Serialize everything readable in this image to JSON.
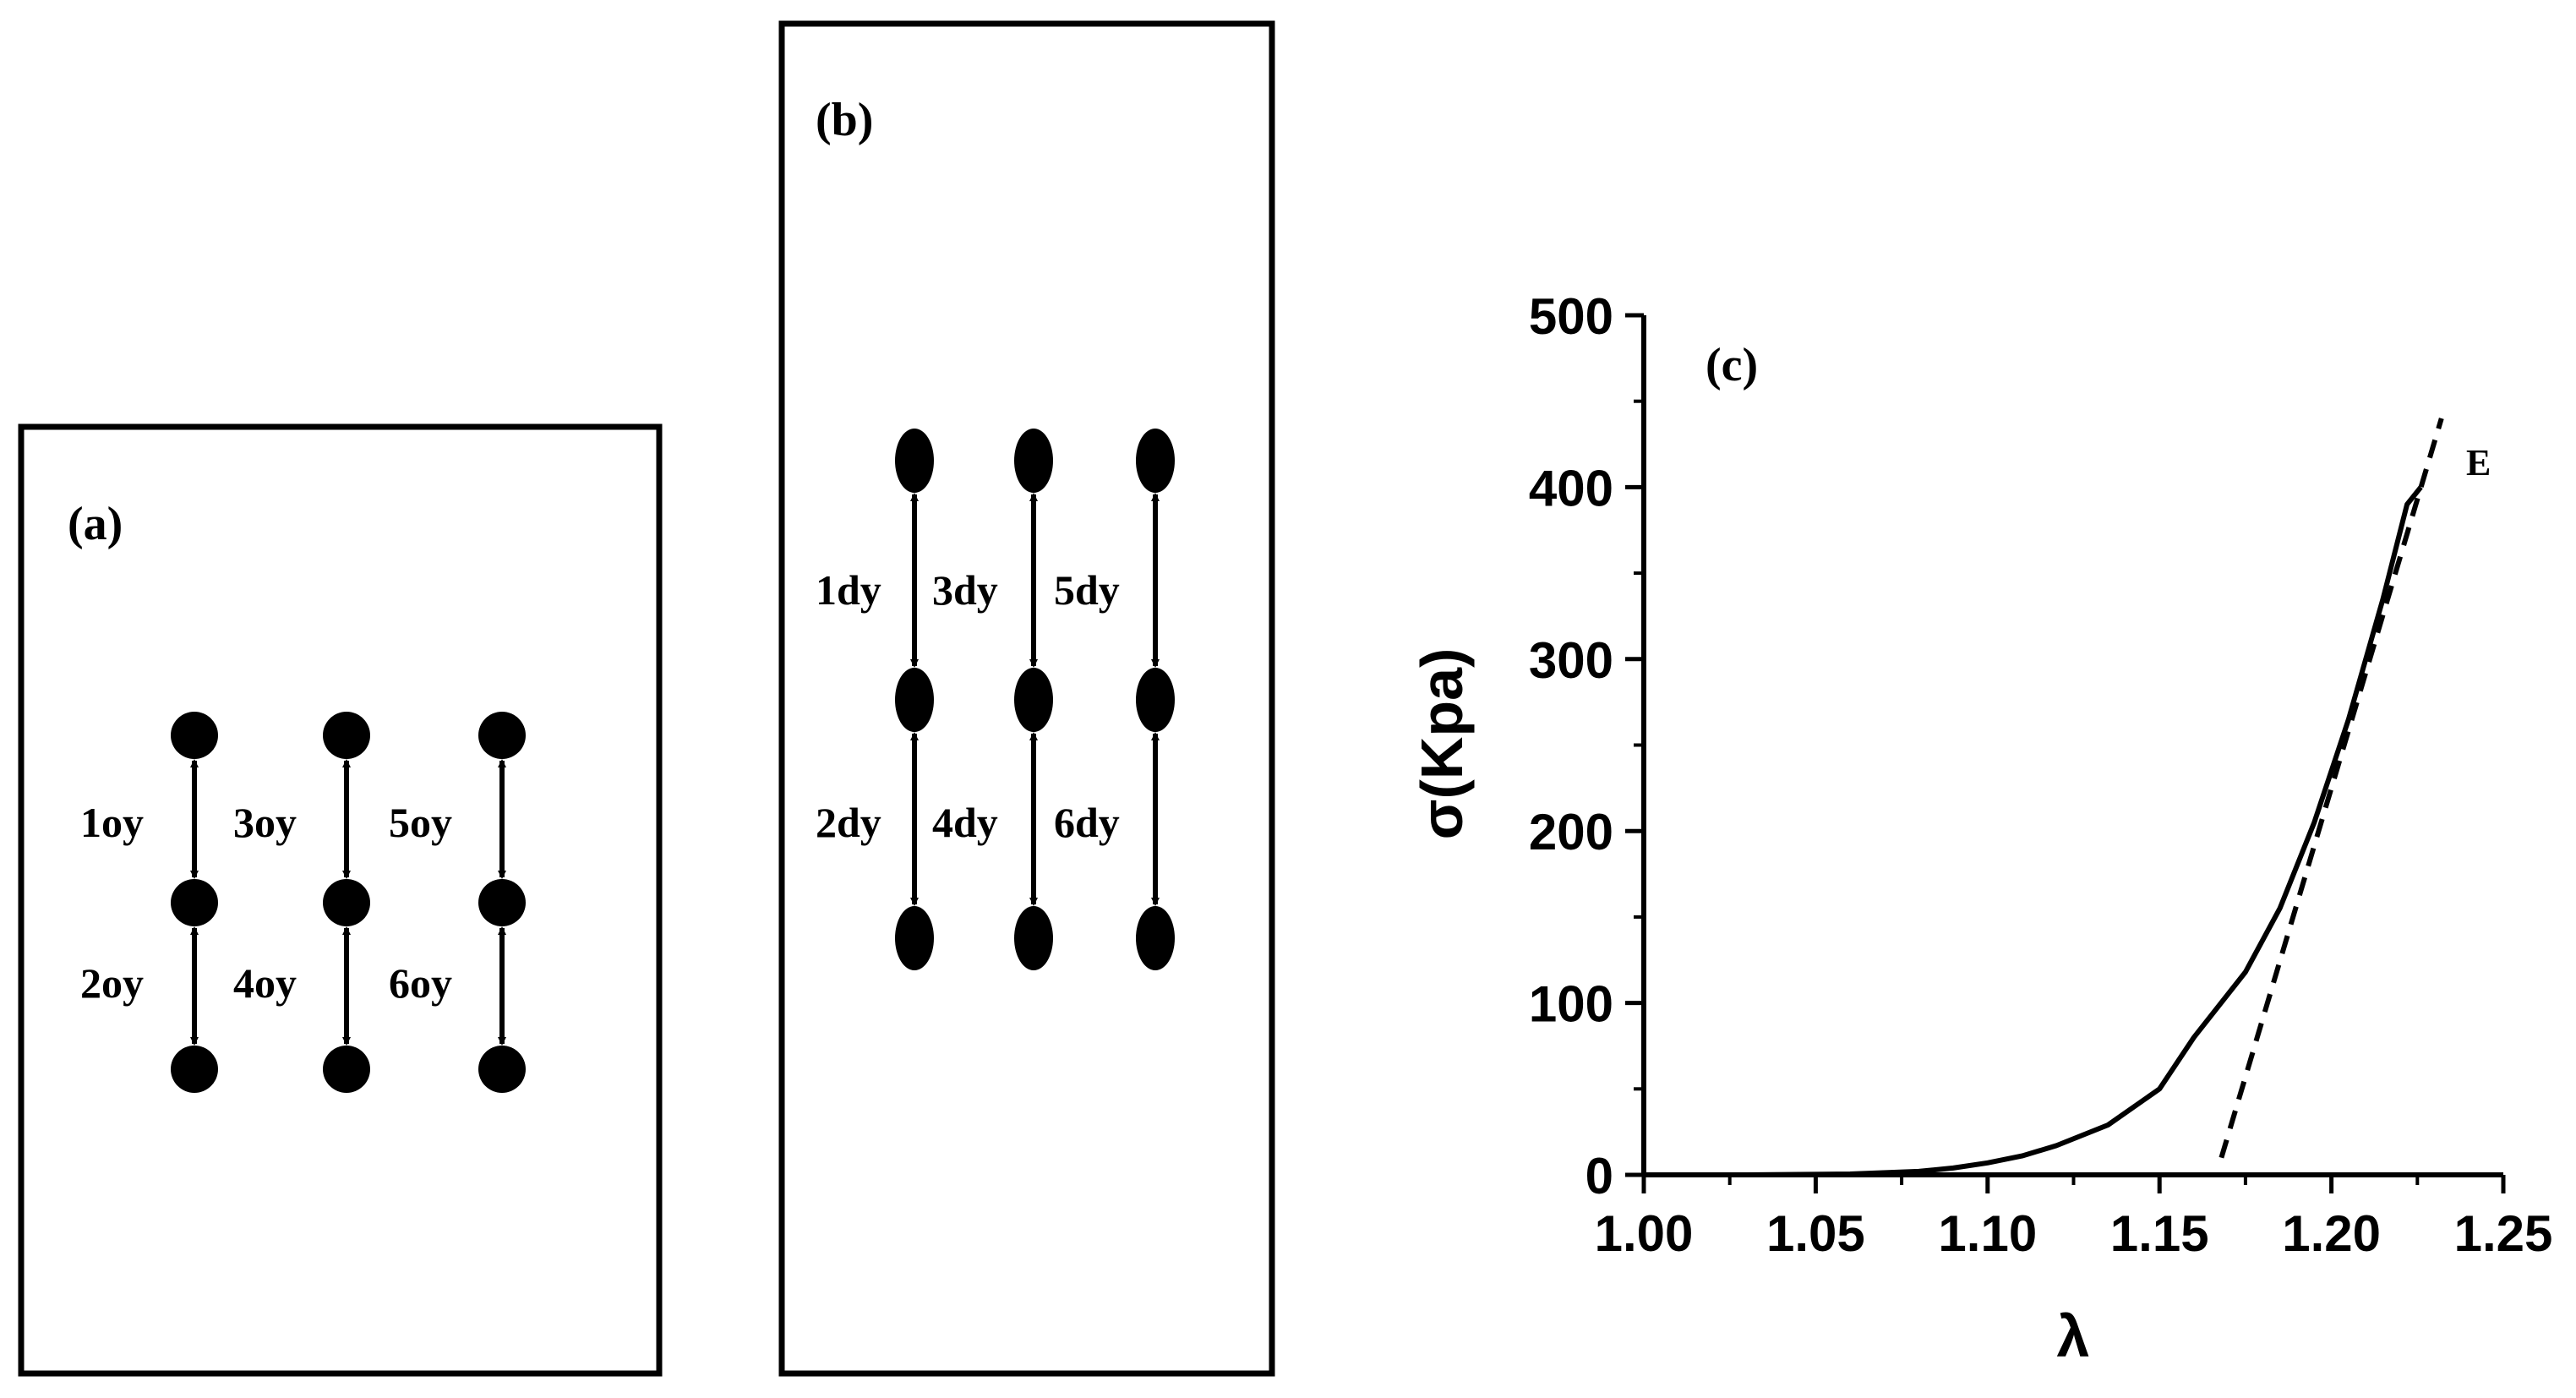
{
  "panel_a": {
    "label": "(a)",
    "row1_labels": [
      "1oy",
      "3oy",
      "5oy"
    ],
    "row2_labels": [
      "2oy",
      "4oy",
      "6oy"
    ]
  },
  "panel_b": {
    "label": "(b)",
    "row1_labels": [
      "1dy",
      "3dy",
      "5dy"
    ],
    "row2_labels": [
      "2dy",
      "4dy",
      "6dy"
    ]
  },
  "chart_data": {
    "type": "line",
    "panel_label": "(c)",
    "xlabel": "λ",
    "ylabel": "σ(Kpa)",
    "xlim": [
      1.0,
      1.25
    ],
    "ylim": [
      0,
      500
    ],
    "x_ticks": [
      "1.00",
      "1.05",
      "1.10",
      "1.15",
      "1.20",
      "1.25"
    ],
    "y_ticks": [
      "0",
      "100",
      "200",
      "300",
      "400",
      "500"
    ],
    "series": [
      {
        "style": "solid",
        "color": "#000000",
        "points": [
          [
            1.0,
            0
          ],
          [
            1.03,
            0
          ],
          [
            1.06,
            0.5
          ],
          [
            1.08,
            2
          ],
          [
            1.09,
            4
          ],
          [
            1.1,
            7
          ],
          [
            1.11,
            11
          ],
          [
            1.12,
            17
          ],
          [
            1.135,
            29
          ],
          [
            1.15,
            50
          ],
          [
            1.16,
            80
          ],
          [
            1.175,
            118
          ],
          [
            1.185,
            155
          ],
          [
            1.195,
            205
          ],
          [
            1.205,
            265
          ],
          [
            1.215,
            335
          ],
          [
            1.222,
            390
          ],
          [
            1.226,
            400
          ]
        ]
      },
      {
        "name": "E",
        "style": "dashed",
        "color": "#000000",
        "points": [
          [
            1.168,
            10
          ],
          [
            1.232,
            440
          ]
        ]
      }
    ],
    "annotations": [
      {
        "text": "E"
      }
    ]
  }
}
